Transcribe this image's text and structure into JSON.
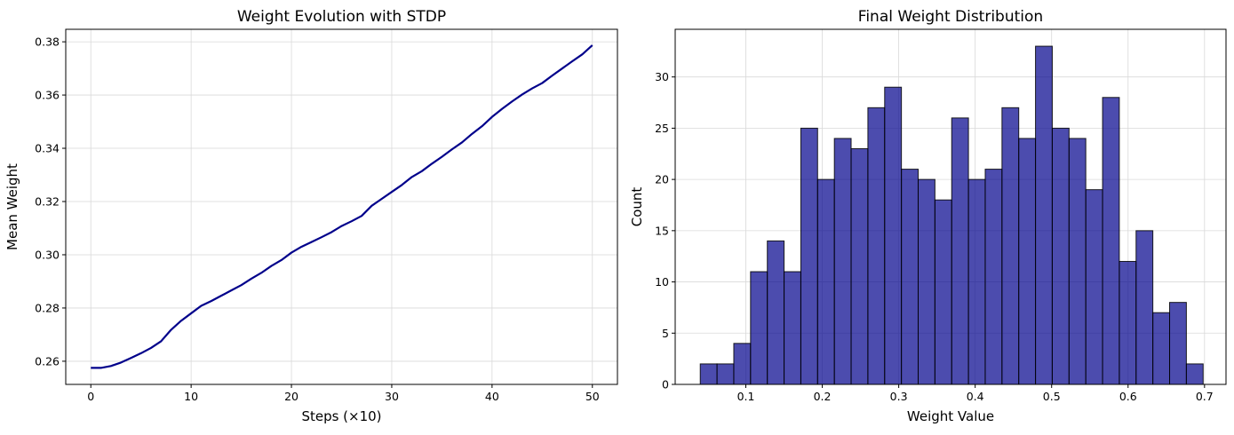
{
  "chart_data": [
    {
      "type": "line",
      "title": "Weight Evolution with STDP",
      "xlabel": "Steps (×10)",
      "ylabel": "Mean Weight",
      "xlim": [
        -2.5,
        52.5
      ],
      "ylim": [
        0.2513,
        0.3847
      ],
      "xticks": [
        0,
        10,
        20,
        30,
        40,
        50
      ],
      "yticks": [
        0.26,
        0.28,
        0.3,
        0.32,
        0.34,
        0.36,
        0.38
      ],
      "xtick_labels": [
        "0",
        "10",
        "20",
        "30",
        "40",
        "50"
      ],
      "ytick_labels": [
        "0.26",
        "0.28",
        "0.30",
        "0.32",
        "0.34",
        "0.36",
        "0.38"
      ],
      "grid": true,
      "line_color": "#00008b",
      "series": [
        {
          "x": [
            0,
            1,
            2,
            3,
            4,
            5,
            6,
            7,
            8,
            9,
            10,
            11,
            12,
            13,
            14,
            15,
            16,
            17,
            18,
            19,
            20,
            21,
            22,
            23,
            24,
            25,
            26,
            27,
            28,
            29,
            30,
            31,
            32,
            33,
            34,
            35,
            36,
            37,
            38,
            39,
            40,
            41,
            42,
            43,
            44,
            45,
            46,
            47,
            48,
            49,
            50
          ],
          "values": [
            0.2575,
            0.2575,
            0.2582,
            0.2595,
            0.2612,
            0.263,
            0.265,
            0.2675,
            0.2718,
            0.2752,
            0.278,
            0.2808,
            0.2826,
            0.2846,
            0.2866,
            0.2886,
            0.291,
            0.2932,
            0.2958,
            0.298,
            0.3008,
            0.303,
            0.3048,
            0.3066,
            0.3085,
            0.3108,
            0.3126,
            0.3146,
            0.3184,
            0.321,
            0.3236,
            0.3262,
            0.3292,
            0.3314,
            0.3342,
            0.3368,
            0.3396,
            0.3422,
            0.3454,
            0.3483,
            0.3518,
            0.3548,
            0.3576,
            0.3602,
            0.3625,
            0.3645,
            0.3673,
            0.37,
            0.3727,
            0.3753,
            0.3787
          ]
        }
      ]
    },
    {
      "type": "bar",
      "title": "Final Weight Distribution",
      "xlabel": "Weight Value",
      "ylabel": "Count",
      "xlim": [
        0.0076,
        0.7281
      ],
      "ylim": [
        0,
        34.65
      ],
      "xticks": [
        0.1,
        0.2,
        0.3,
        0.4,
        0.5,
        0.6,
        0.7
      ],
      "yticks": [
        0,
        5,
        10,
        15,
        20,
        25,
        30
      ],
      "xtick_labels": [
        "0.1",
        "0.2",
        "0.3",
        "0.4",
        "0.5",
        "0.6",
        "0.7"
      ],
      "ytick_labels": [
        "0",
        "5",
        "10",
        "15",
        "20",
        "25",
        "30"
      ],
      "grid": true,
      "bar_color": "#00008b",
      "bar_alpha": 0.7,
      "edge_color": "#000000",
      "bin_start": 0.0404,
      "bin_width": 0.021926,
      "values": [
        2,
        2,
        4,
        11,
        14,
        11,
        25,
        20,
        24,
        23,
        27,
        29,
        21,
        20,
        18,
        26,
        20,
        21,
        27,
        24,
        33,
        25,
        24,
        19,
        28,
        12,
        15,
        7,
        8,
        2
      ]
    }
  ]
}
